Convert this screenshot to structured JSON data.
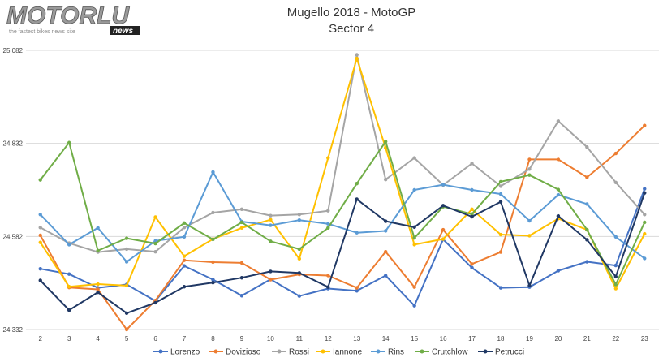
{
  "logo": {
    "brand": "MOTORLU",
    "tagline": "the fastest bikes news site",
    "badge": "news"
  },
  "chart_data": {
    "type": "line",
    "title": "Mugello 2018 - MotoGP",
    "subtitle": "Sector 4",
    "xlabel": "",
    "ylabel": "",
    "x": [
      2,
      3,
      4,
      5,
      6,
      7,
      8,
      9,
      10,
      11,
      12,
      13,
      14,
      15,
      16,
      17,
      18,
      19,
      20,
      21,
      22,
      23
    ],
    "yticks": [
      "24,332",
      "24,582",
      "24,832",
      "25,082"
    ],
    "ylim": [
      24.332,
      25.082
    ],
    "grid": true,
    "legend_position": "bottom",
    "series": [
      {
        "name": "Lorenzo",
        "color": "#4472c4",
        "values": [
          24.495,
          24.481,
          24.444,
          24.453,
          24.409,
          24.503,
          24.466,
          24.423,
          24.467,
          24.422,
          24.442,
          24.436,
          24.477,
          24.396,
          24.574,
          24.498,
          24.444,
          24.446,
          24.49,
          24.514,
          24.504,
          24.71
        ]
      },
      {
        "name": "Dovizioso",
        "color": "#ed7d31",
        "values": [
          24.585,
          24.445,
          24.44,
          24.332,
          24.41,
          24.518,
          24.513,
          24.511,
          24.466,
          24.48,
          24.477,
          24.444,
          24.541,
          24.446,
          24.6,
          24.508,
          24.54,
          24.789,
          24.789,
          24.741,
          24.805,
          24.88
        ]
      },
      {
        "name": "Rossi",
        "color": "#a5a5a5",
        "values": [
          24.606,
          24.564,
          24.54,
          24.548,
          24.541,
          24.606,
          24.646,
          24.655,
          24.638,
          24.641,
          24.651,
          25.07,
          24.735,
          24.793,
          24.72,
          24.778,
          24.717,
          24.763,
          24.892,
          24.822,
          24.727,
          24.641
        ]
      },
      {
        "name": "Iannone",
        "color": "#ffc000",
        "values": [
          24.566,
          24.447,
          24.454,
          24.45,
          24.634,
          24.529,
          24.575,
          24.605,
          24.627,
          24.522,
          24.793,
          25.06,
          24.82,
          24.56,
          24.575,
          24.655,
          24.587,
          24.584,
          24.63,
          24.6,
          24.442,
          24.589
        ]
      },
      {
        "name": "Rins",
        "color": "#5b9bd5",
        "values": [
          24.641,
          24.56,
          24.605,
          24.514,
          24.57,
          24.581,
          24.755,
          24.622,
          24.612,
          24.626,
          24.616,
          24.592,
          24.597,
          24.707,
          24.721,
          24.707,
          24.696,
          24.624,
          24.694,
          24.669,
          24.581,
          24.523
        ]
      },
      {
        "name": "Crutchlow",
        "color": "#70ad47",
        "values": [
          24.734,
          24.834,
          24.544,
          24.577,
          24.563,
          24.618,
          24.574,
          24.62,
          24.569,
          24.548,
          24.605,
          24.724,
          24.837,
          24.578,
          24.662,
          24.642,
          24.729,
          24.747,
          24.708,
          24.6,
          24.453,
          24.62
        ]
      },
      {
        "name": "Petrucci",
        "color": "#203864",
        "values": [
          24.464,
          24.384,
          24.432,
          24.376,
          24.404,
          24.447,
          24.458,
          24.471,
          24.488,
          24.484,
          24.446,
          24.682,
          24.623,
          24.607,
          24.665,
          24.635,
          24.675,
          24.45,
          24.637,
          24.573,
          24.474,
          24.699
        ]
      }
    ]
  }
}
